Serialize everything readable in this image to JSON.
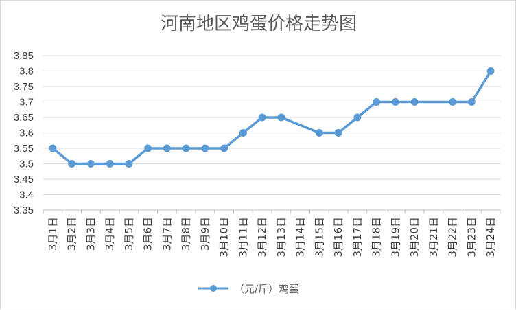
{
  "chart_data": {
    "type": "line",
    "title": "河南地区鸡蛋价格走势图",
    "categories": [
      "3月1日",
      "3月2日",
      "3月3日",
      "3月4日",
      "3月5日",
      "3月6日",
      "3月7日",
      "3月8日",
      "3月9日",
      "3月10日",
      "3月11日",
      "3月12日",
      "3月13日",
      "3月14日",
      "3月15日",
      "3月16日",
      "3月17日",
      "3月18日",
      "3月19日",
      "3月20日",
      "3月21日",
      "3月22日",
      "3月23日",
      "3月24日"
    ],
    "series": [
      {
        "name": "（元/斤）鸡蛋",
        "color": "#5b9bd5",
        "values": [
          3.55,
          3.5,
          3.5,
          3.5,
          3.5,
          3.55,
          3.55,
          3.55,
          3.55,
          3.55,
          3.6,
          3.65,
          3.65,
          null,
          3.6,
          3.6,
          3.65,
          3.7,
          3.7,
          3.7,
          null,
          3.7,
          3.7,
          3.8
        ]
      }
    ],
    "ylim": [
      3.35,
      3.85
    ],
    "yticks": [
      "3.35",
      "3.4",
      "3.45",
      "3.5",
      "3.55",
      "3.6",
      "3.65",
      "3.7",
      "3.75",
      "3.8",
      "3.85"
    ],
    "grid": true,
    "legend_position": "bottom",
    "gridline_color": "#d9d9d9",
    "axis_color": "#bfbfbf"
  }
}
